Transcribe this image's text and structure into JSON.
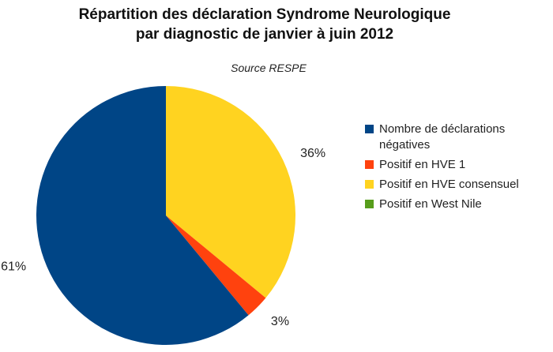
{
  "chart_data": {
    "type": "pie",
    "title_line1": "Répartition des déclaration Syndrome Neurologique",
    "title_line2": "par diagnostic de janvier à juin 2012",
    "subtitle": "Source RESPE",
    "legend_position": "right",
    "slices": [
      {
        "name": "Nombre de déclarations négatives",
        "legend_line1": "Nombre de déclarations",
        "legend_line2": "négatives",
        "value": 61,
        "label": "61%",
        "color": "#004586"
      },
      {
        "name": "Positif en HVE 1",
        "value": 3,
        "label": "3%",
        "color": "#ff420e"
      },
      {
        "name": "Positif en HVE consensuel",
        "value": 36,
        "label": "36%",
        "color": "#ffd320"
      },
      {
        "name": "Positif en West Nile",
        "value": 0,
        "label": "",
        "color": "#579d1c"
      }
    ],
    "start_at": "12-o'clock",
    "direction": "clockwise",
    "order_clockwise": [
      2,
      1,
      0
    ]
  }
}
